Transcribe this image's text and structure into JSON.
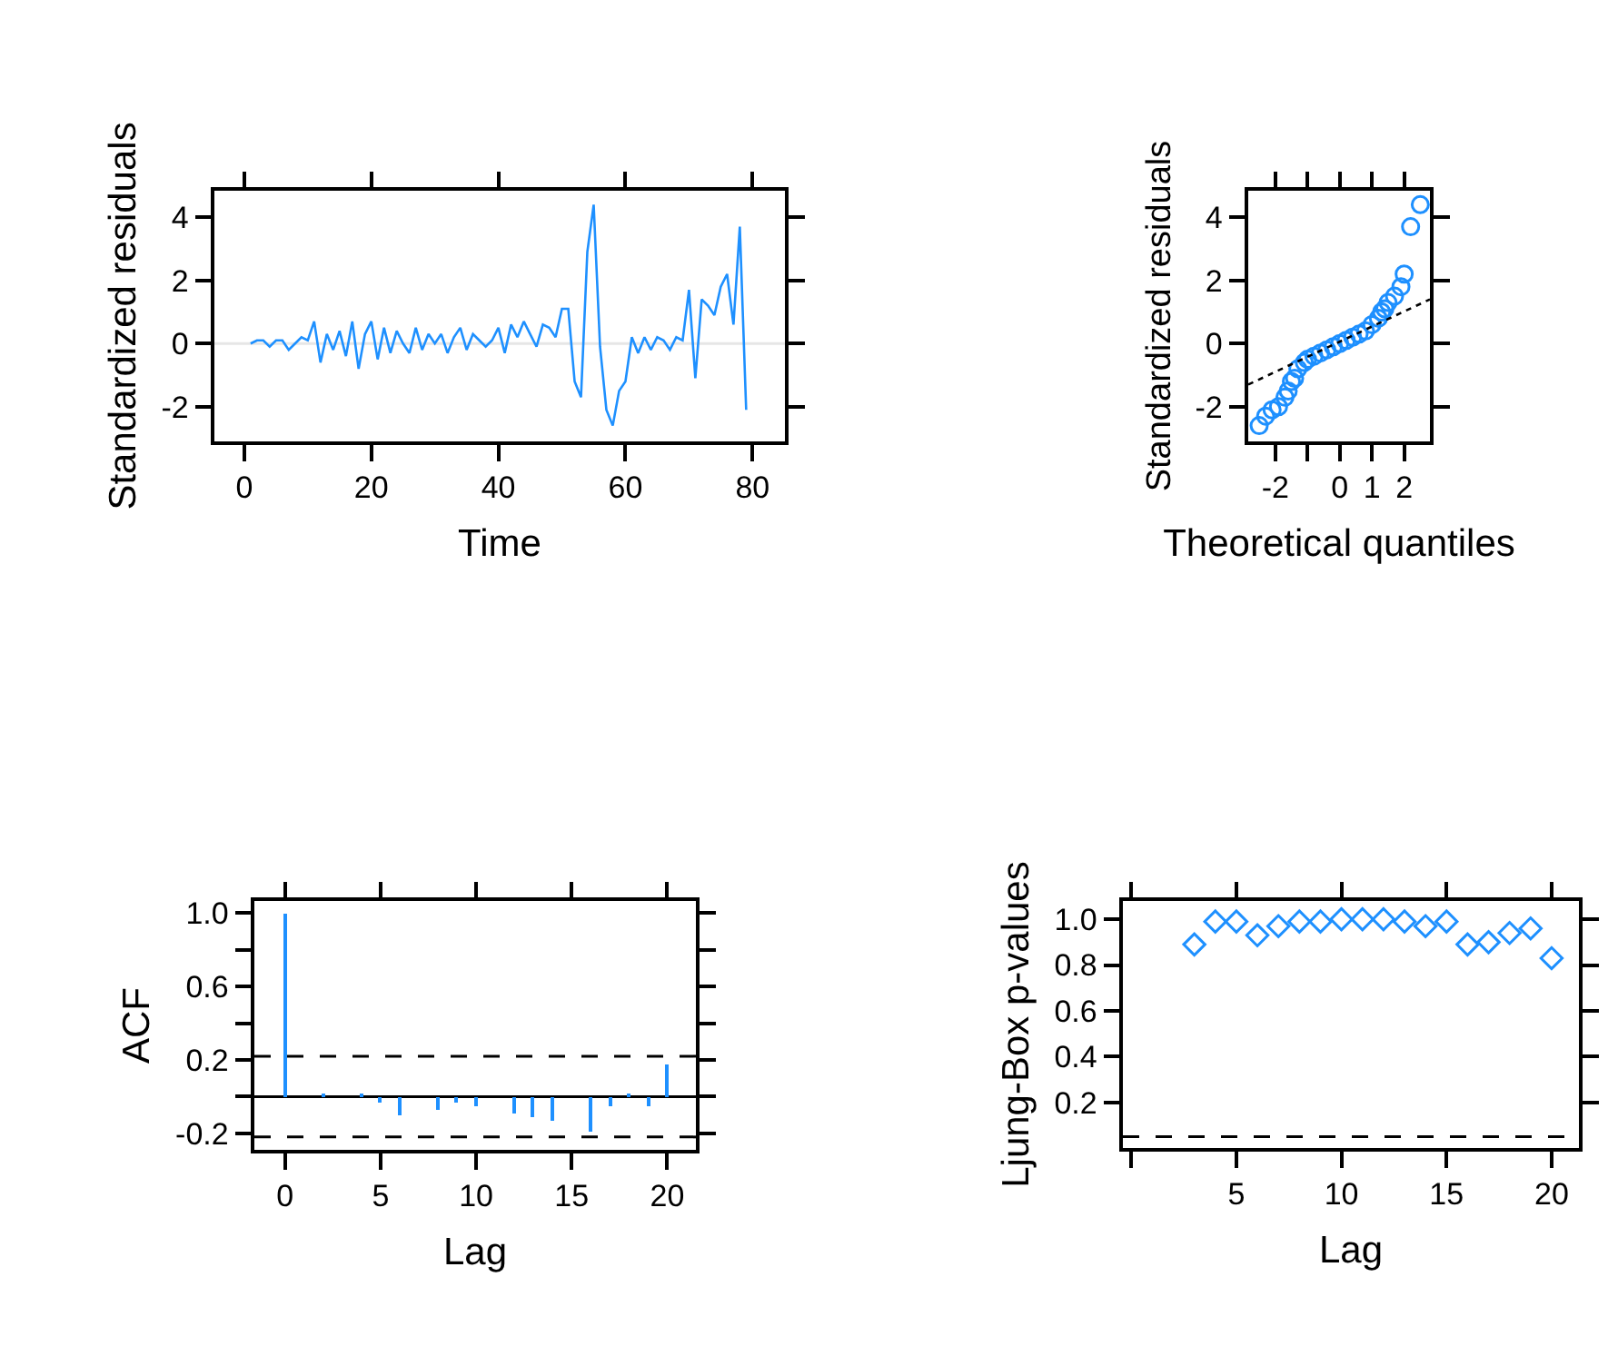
{
  "chart_data": [
    {
      "type": "line",
      "xlabel": "Time",
      "ylabel": "Standardized residuals",
      "color": "#1e90ff",
      "xlim": [
        -4.7,
        85.1
      ],
      "ylim": [
        -3.1,
        4.84
      ],
      "xticks": [
        0,
        20,
        40,
        60,
        80
      ],
      "yticks": [
        -2,
        0,
        2,
        4
      ],
      "x": [
        1,
        2,
        3,
        4,
        5,
        6,
        7,
        8,
        9,
        10,
        11,
        12,
        13,
        14,
        15,
        16,
        17,
        18,
        19,
        20,
        21,
        22,
        23,
        24,
        25,
        26,
        27,
        28,
        29,
        30,
        31,
        32,
        33,
        34,
        35,
        36,
        37,
        38,
        39,
        40,
        41,
        42,
        43,
        44,
        45,
        46,
        47,
        48,
        49,
        50,
        51,
        52,
        53,
        54,
        55,
        56,
        57,
        58,
        59,
        60,
        61,
        62,
        63,
        64,
        65,
        66,
        67,
        68,
        69,
        70,
        71,
        72,
        73,
        74,
        75,
        76,
        77,
        78,
        79
      ],
      "values": [
        0,
        0.1,
        0.1,
        -0.1,
        0.1,
        0.1,
        -0.2,
        0,
        0.2,
        0.1,
        0.7,
        -0.6,
        0.3,
        -0.2,
        0.4,
        -0.4,
        0.7,
        -0.8,
        0.3,
        0.7,
        -0.5,
        0.5,
        -0.3,
        0.4,
        0,
        -0.3,
        0.5,
        -0.2,
        0.3,
        0,
        0.3,
        -0.3,
        0.2,
        0.5,
        -0.2,
        0.3,
        0.1,
        -0.1,
        0.1,
        0.5,
        -0.3,
        0.6,
        0.2,
        0.7,
        0.3,
        -0.1,
        0.6,
        0.5,
        0.2,
        1.1,
        1.1,
        -1.2,
        -1.7,
        2.9,
        4.4,
        -0.1,
        -2.1,
        -2.6,
        -1.5,
        -1.2,
        0.2,
        -0.3,
        0.2,
        -0.2,
        0.2,
        0.1,
        -0.2,
        0.2,
        0.1,
        1.7,
        -1.1,
        1.4,
        1.2,
        0.9,
        1.8,
        2.2,
        0.6,
        3.7,
        -2.1
      ],
      "ref_lines": [
        {
          "axis": "y",
          "value": 0,
          "color": "#e6e6e6"
        }
      ]
    },
    {
      "type": "scatter",
      "xlabel": "Theoretical quantiles",
      "ylabel": "Standardized residuals",
      "xlim": [
        -2.84,
        2.8
      ],
      "ylim": [
        -3.1,
        4.84
      ],
      "yticks": [
        -2,
        0,
        2,
        4
      ],
      "xticks": [
        -2,
        {
          "value": -1,
          "label": null
        },
        0,
        1,
        2
      ],
      "series": [
        {
          "type": "scatter",
          "marker": "circle",
          "color": "#1e90ff",
          "x": [
            -2.5,
            -2.3,
            -2.1,
            -1.9,
            -1.7,
            -1.6,
            -1.5,
            -1.4,
            -1.3,
            -1.1,
            -1.0,
            -0.8,
            -0.6,
            -0.4,
            -0.2,
            0,
            0.2,
            0.4,
            0.6,
            0.8,
            1.0,
            1.2,
            1.3,
            1.4,
            1.5,
            1.7,
            1.9,
            2.0,
            2.2,
            2.5
          ],
          "values": [
            -2.6,
            -2.3,
            -2.1,
            -2.0,
            -1.7,
            -1.5,
            -1.2,
            -1.1,
            -0.8,
            -0.6,
            -0.5,
            -0.4,
            -0.3,
            -0.2,
            -0.1,
            0,
            0.1,
            0.2,
            0.3,
            0.4,
            0.6,
            0.8,
            1.0,
            1.1,
            1.3,
            1.5,
            1.8,
            2.2,
            3.7,
            4.4
          ]
        },
        {
          "type": "line",
          "color": "#000000",
          "line_style": "dotted",
          "x": [
            -2.84,
            2.8
          ],
          "values": [
            -1.3,
            1.4
          ]
        }
      ]
    },
    {
      "type": "bar",
      "xlabel": "Lag",
      "ylabel": "ACF",
      "color": "#1e90ff",
      "xlim": [
        -1.6,
        21.5
      ],
      "ylim": [
        -0.29,
        1.066
      ],
      "xticks": [
        0,
        5,
        10,
        15,
        20
      ],
      "yticks": [
        {
          "value": 1,
          "label": "1.0"
        },
        {
          "value": 0.8,
          "label": null
        },
        {
          "value": 0.6,
          "label": "0.6"
        },
        {
          "value": 0.4,
          "label": null
        },
        {
          "value": 0.2,
          "label": "0.2"
        },
        {
          "value": 0,
          "label": null
        },
        {
          "value": -0.2,
          "label": "-0.2"
        }
      ],
      "x": [
        0,
        1,
        2,
        3,
        4,
        5,
        6,
        7,
        8,
        9,
        10,
        11,
        12,
        13,
        14,
        15,
        16,
        17,
        18,
        19,
        20
      ],
      "values": [
        1.0,
        0,
        0.02,
        0,
        0.02,
        -0.03,
        -0.1,
        0,
        -0.07,
        -0.03,
        -0.05,
        0,
        -0.09,
        -0.11,
        -0.13,
        0,
        -0.19,
        -0.05,
        0.02,
        -0.05,
        0.18
      ],
      "ref_lines": [
        {
          "axis": "y",
          "value": 0.22,
          "color": "#000000",
          "line_style": "dashed"
        },
        {
          "axis": "y",
          "value": -0.22,
          "color": "#000000",
          "line_style": "dashed"
        },
        {
          "axis": "y",
          "value": 0,
          "color": "#000000",
          "line_style": "solid"
        }
      ]
    },
    {
      "type": "scatter",
      "xlabel": "Lag",
      "ylabel": "Ljung-Box p-values",
      "color": "#1e90ff",
      "marker": "diamond",
      "xlim": [
        -0.4,
        21.3
      ],
      "ylim": [
        0,
        1.08
      ],
      "xticks": [
        {
          "value": 0,
          "label": null
        },
        5,
        10,
        15,
        20
      ],
      "yticks": [
        {
          "value": 1,
          "label": "1.0"
        },
        {
          "value": 0.8,
          "label": "0.8"
        },
        {
          "value": 0.6,
          "label": "0.6"
        },
        {
          "value": 0.4,
          "label": "0.4"
        },
        {
          "value": 0.2,
          "label": "0.2"
        }
      ],
      "x": [
        3,
        4,
        5,
        6,
        7,
        8,
        9,
        10,
        11,
        12,
        13,
        14,
        15,
        16,
        17,
        18,
        19,
        20
      ],
      "values": [
        0.89,
        0.99,
        0.99,
        0.93,
        0.97,
        0.99,
        0.99,
        1.0,
        1.0,
        1.0,
        0.99,
        0.97,
        0.99,
        0.89,
        0.9,
        0.94,
        0.96,
        0.83
      ],
      "ref_lines": [
        {
          "axis": "y",
          "value": 0.05,
          "color": "#000000",
          "line_style": "dashed"
        }
      ]
    }
  ]
}
